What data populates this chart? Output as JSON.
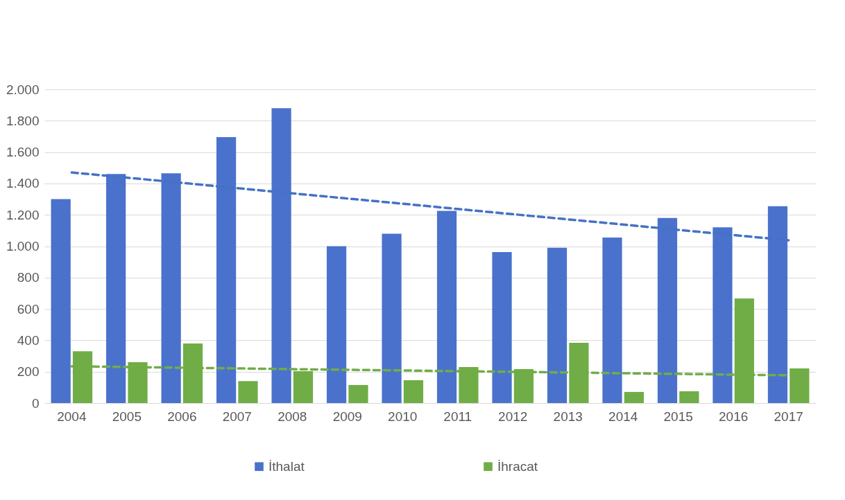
{
  "chart_data": {
    "type": "bar",
    "categories": [
      "2004",
      "2005",
      "2006",
      "2007",
      "2008",
      "2009",
      "2010",
      "2011",
      "2012",
      "2013",
      "2014",
      "2015",
      "2016",
      "2017"
    ],
    "series": [
      {
        "name": "İthalat",
        "color": "#4a72cc",
        "values": [
          1300,
          1460,
          1465,
          1695,
          1880,
          1000,
          1080,
          1225,
          962,
          990,
          1055,
          1180,
          1120,
          1255
        ]
      },
      {
        "name": "İhracat",
        "color": "#70ad47",
        "values": [
          330,
          260,
          380,
          140,
          203,
          115,
          146,
          230,
          216,
          384,
          71,
          75,
          667,
          221
        ]
      },
      {
        "type": "line",
        "color": "#4472c4",
        "line_style": "dashed",
        "values": [
          1470,
          1437,
          1404,
          1370,
          1337,
          1304,
          1271,
          1237,
          1204,
          1171,
          1138,
          1104,
          1071,
          1038
        ]
      },
      {
        "type": "line",
        "color": "#70ad47",
        "line_style": "dashed",
        "values": [
          234,
          230,
          225,
          221,
          216,
          212,
          208,
          203,
          199,
          195,
          190,
          186,
          181,
          177
        ]
      }
    ],
    "ylim": [
      0,
      2000
    ],
    "yticks": [
      0,
      200,
      400,
      600,
      800,
      {
        "value": 1000,
        "label": "1.000"
      },
      {
        "value": 1200,
        "label": "1.200"
      },
      {
        "value": 1400,
        "label": "1.400"
      },
      {
        "value": 1600,
        "label": "1.600"
      },
      {
        "value": 1800,
        "label": "1.800"
      },
      {
        "value": 2000,
        "label": "2.000"
      }
    ],
    "grid": "y",
    "legend": "bottom"
  }
}
